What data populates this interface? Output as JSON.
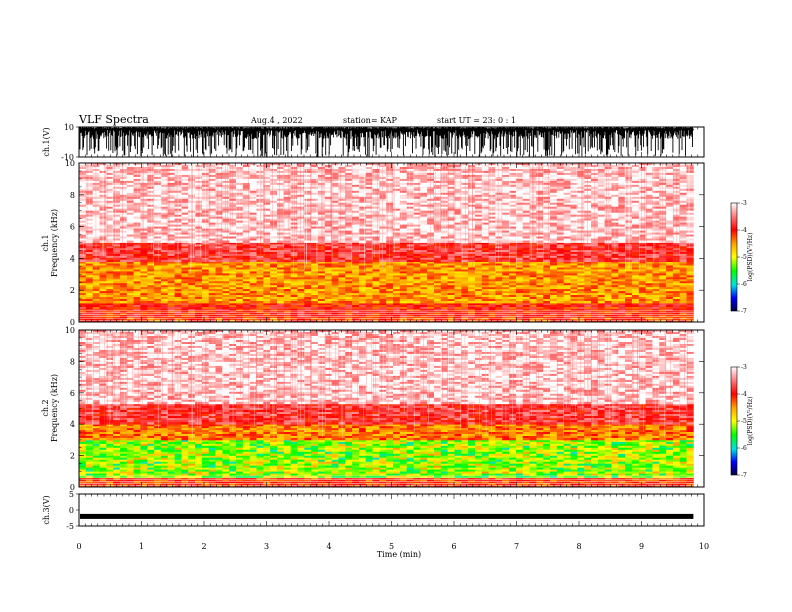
{
  "header": {
    "title": "VLF Spectra",
    "date": "Aug.4 , 2022",
    "station": "station= KAP",
    "start": "start UT = 23: 0 : 1"
  },
  "chart_data": [
    {
      "type": "line",
      "panel": "ch1-waveform",
      "ylabel": "ch.1(V)",
      "ylim": [
        -10,
        10
      ],
      "yticks": [
        "10",
        "-10"
      ],
      "x_range_min": [
        0,
        9.83
      ],
      "trace_color": "#000000",
      "description_visual": "dense noisy waveform saturating near +10 V with dips"
    },
    {
      "type": "heatmap",
      "panel": "ch1-spectrogram",
      "ylabel": "ch.1 Frequency (kHz)",
      "ylim_khz": [
        0,
        10
      ],
      "yticks": [
        "0",
        "2",
        "4",
        "6",
        "8",
        "10"
      ],
      "x_range_min": [
        0,
        9.83
      ],
      "bands": [
        {
          "from_khz": 0.0,
          "to_khz": 0.3,
          "level": -4.2
        },
        {
          "from_khz": 0.3,
          "to_khz": 1.2,
          "level": -4.0
        },
        {
          "from_khz": 1.2,
          "to_khz": 3.8,
          "level": -4.5
        },
        {
          "from_khz": 3.8,
          "to_khz": 5.0,
          "level": -3.8
        },
        {
          "from_khz": 5.0,
          "to_khz": 10.0,
          "level": -3.2
        }
      ],
      "colorbar": {
        "label": "log(PSD)(V²/Hz)",
        "ticks": [
          "-3",
          "-4",
          "-5",
          "-6",
          "-7"
        ],
        "range": [
          -7,
          -3
        ]
      }
    },
    {
      "type": "heatmap",
      "panel": "ch2-spectrogram",
      "ylabel": "ch.2 Frequency (kHz)",
      "ylim_khz": [
        0,
        10
      ],
      "yticks": [
        "0",
        "2",
        "4",
        "6",
        "8",
        "10"
      ],
      "x_range_min": [
        0,
        9.83
      ],
      "bands": [
        {
          "from_khz": 0.0,
          "to_khz": 0.6,
          "level": -4.1
        },
        {
          "from_khz": 0.6,
          "to_khz": 3.0,
          "level": -5.2
        },
        {
          "from_khz": 3.0,
          "to_khz": 4.0,
          "level": -4.4
        },
        {
          "from_khz": 4.0,
          "to_khz": 5.3,
          "level": -3.8
        },
        {
          "from_khz": 5.3,
          "to_khz": 10.0,
          "level": -3.2
        }
      ],
      "colorbar": {
        "label": "log(PSD)(V²/Hz)",
        "ticks": [
          "-3",
          "-4",
          "-5",
          "-6",
          "-7"
        ],
        "range": [
          -7,
          -3
        ]
      }
    },
    {
      "type": "line",
      "panel": "ch3-waveform",
      "ylabel": "ch.3(V)",
      "ylim": [
        -5,
        5
      ],
      "yticks": [
        "5",
        "0",
        "-5"
      ],
      "x_range_min": [
        0,
        9.83
      ],
      "level_v": -2.0,
      "trace_color": "#000000"
    }
  ],
  "xaxis": {
    "label": "Time (min)",
    "xlim": [
      0,
      10
    ],
    "ticks": [
      "0",
      "1",
      "2",
      "3",
      "4",
      "5",
      "6",
      "7",
      "8",
      "9",
      "10"
    ]
  }
}
